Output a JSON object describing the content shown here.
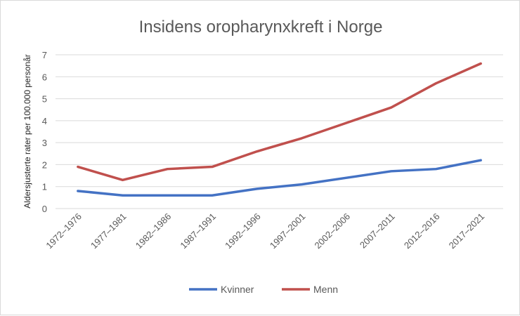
{
  "chart_data": {
    "type": "line",
    "title": "Insidens oropharynxkreft i Norge",
    "xlabel": "",
    "ylabel": "Aldersjusterte rater per 100.000 personår",
    "categories": [
      "1972–1976",
      "1977–1981",
      "1982–1986",
      "1987–1991",
      "1992–1996",
      "1997–2001",
      "2002–2006",
      "2007–2011",
      "2012–2016",
      "2017–2021"
    ],
    "ylim": [
      0,
      7
    ],
    "yticks": [
      "0",
      "1",
      "2",
      "3",
      "4",
      "5",
      "6",
      "7"
    ],
    "grid": true,
    "legend": "bottom",
    "series": [
      {
        "name": "Kvinner",
        "color": "#4472C4",
        "values": [
          0.8,
          0.6,
          0.6,
          0.6,
          0.9,
          1.1,
          1.4,
          1.7,
          1.8,
          2.2
        ]
      },
      {
        "name": "Menn",
        "color": "#C0504D",
        "values": [
          1.9,
          1.3,
          1.8,
          1.9,
          2.6,
          3.2,
          3.9,
          4.6,
          5.7,
          6.6
        ]
      }
    ]
  }
}
